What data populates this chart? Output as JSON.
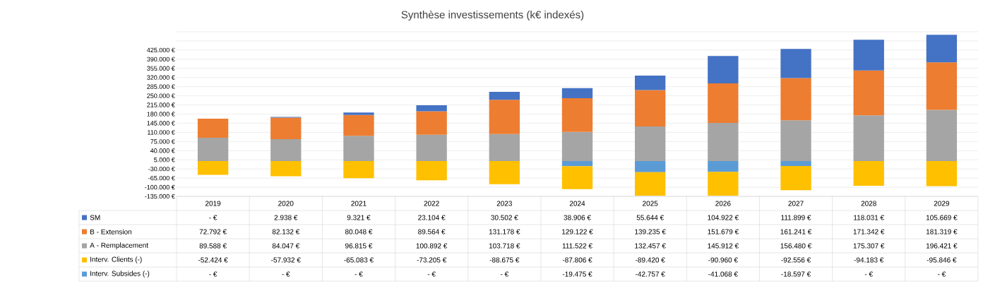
{
  "chart_data": {
    "type": "bar",
    "stacked": true,
    "title": "Synthèse investissements (k€ indexés)",
    "categories": [
      "2019",
      "2020",
      "2021",
      "2022",
      "2023",
      "2024",
      "2025",
      "2026",
      "2027",
      "2028",
      "2029"
    ],
    "series": [
      {
        "name": "A - Remplacement",
        "color": "#a5a5a5",
        "values": [
          89588,
          84047,
          96815,
          100892,
          103718,
          111522,
          132457,
          145912,
          156480,
          175307,
          196421
        ],
        "value_labels": [
          "89.588 €",
          "84.047 €",
          "96.815 €",
          "100.892 €",
          "103.718 €",
          "111.522 €",
          "132.457 €",
          "145.912 €",
          "156.480 €",
          "175.307 €",
          "196.421 €"
        ]
      },
      {
        "name": "B - Extension",
        "color": "#ed7d31",
        "values": [
          72792,
          82132,
          80048,
          89564,
          131178,
          129122,
          139235,
          151679,
          161241,
          171342,
          181319
        ],
        "value_labels": [
          "72.792 €",
          "82.132 €",
          "80.048 €",
          "89.564 €",
          "131.178 €",
          "129.122 €",
          "139.235 €",
          "151.679 €",
          "161.241 €",
          "171.342 €",
          "181.319 €"
        ]
      },
      {
        "name": "SM",
        "color": "#4472c4",
        "values": [
          0,
          2938,
          9321,
          23104,
          30502,
          38906,
          55644,
          104922,
          111899,
          118031,
          105669
        ],
        "value_labels": [
          "-  €",
          "2.938 €",
          "9.321 €",
          "23.104 €",
          "30.502 €",
          "38.906 €",
          "55.644 €",
          "104.922 €",
          "111.899 €",
          "118.031 €",
          "105.669 €"
        ]
      },
      {
        "name": "Interv. Subsides (-)",
        "color": "#5b9bd5",
        "values": [
          0,
          0,
          0,
          0,
          0,
          -19475,
          -42757,
          -41068,
          -18597,
          0,
          0
        ],
        "value_labels": [
          "-  €",
          "-  €",
          "-  €",
          "-  €",
          "-  €",
          "-19.475 €",
          "-42.757 €",
          "-41.068 €",
          "-18.597 €",
          "-  €",
          "-  €"
        ]
      },
      {
        "name": "Interv. Clients (-)",
        "color": "#ffc000",
        "values": [
          -52424,
          -57932,
          -65083,
          -73205,
          -88675,
          -87806,
          -89420,
          -90960,
          -92556,
          -94183,
          -95846
        ],
        "value_labels": [
          "-52.424 €",
          "-57.932 €",
          "-65.083 €",
          "-73.205 €",
          "-88.675 €",
          "-87.806 €",
          "-89.420 €",
          "-90.960 €",
          "-92.556 €",
          "-94.183 €",
          "-95.846 €"
        ]
      }
    ],
    "ylim": [
      -135000,
      495000
    ],
    "yticks": [
      {
        "value": -135000,
        "label": "-135.000 €"
      },
      {
        "value": -100000,
        "label": "-100.000 €"
      },
      {
        "value": -65000,
        "label": "-65.000 €"
      },
      {
        "value": -30000,
        "label": "-30.000 €"
      },
      {
        "value": 5000,
        "label": "5.000 €"
      },
      {
        "value": 40000,
        "label": "40.000 €"
      },
      {
        "value": 75000,
        "label": "75.000 €"
      },
      {
        "value": 110000,
        "label": "110.000 €"
      },
      {
        "value": 145000,
        "label": "145.000 €"
      },
      {
        "value": 180000,
        "label": "180.000 €"
      },
      {
        "value": 215000,
        "label": "215.000 €"
      },
      {
        "value": 250000,
        "label": "250.000 €"
      },
      {
        "value": 285000,
        "label": "285.000 €"
      },
      {
        "value": 320000,
        "label": "320.000 €"
      },
      {
        "value": 355000,
        "label": "355.000 €"
      },
      {
        "value": 390000,
        "label": "390.000 €"
      },
      {
        "value": 425000,
        "label": "425.000 €"
      },
      {
        "value": 460000,
        "label": null
      },
      {
        "value": 495000,
        "label": null
      }
    ],
    "grid": "y",
    "legend": "bottom"
  }
}
